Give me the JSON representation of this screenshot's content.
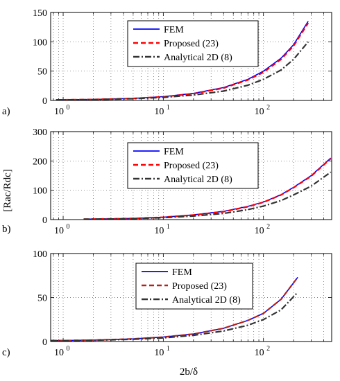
{
  "figure": {
    "xlabel": "2b/δ",
    "ylabel": "[Rac/Rdc]"
  },
  "colors": {
    "fem": "#0000ff",
    "proposed": "#ff0000",
    "proposed_c": "#b22222",
    "analytical": "#333333",
    "grid": "#555555"
  },
  "chart_data": [
    {
      "type": "line",
      "panel_label": "a)",
      "xscale": "log",
      "xlim": [
        0.75,
        480
      ],
      "ylim": [
        0,
        150
      ],
      "yticks": [
        0,
        50,
        100,
        150
      ],
      "xticks": [
        "10",
        "10",
        "10"
      ],
      "xtick_exponents": [
        "0",
        "1",
        "2"
      ],
      "legend_position": "top-center",
      "series": [
        {
          "name": "FEM",
          "style": "solid",
          "color": "#0000ff",
          "x": [
            0.85,
            1,
            2,
            5,
            10,
            20,
            40,
            70,
            100,
            150,
            200,
            280
          ],
          "y": [
            1,
            1.05,
            1.6,
            3.5,
            6.5,
            12,
            22,
            36,
            50,
            72,
            95,
            135
          ]
        },
        {
          "name": "Proposed (23)",
          "style": "dashed",
          "color": "#ff0000",
          "x": [
            0.85,
            1,
            2,
            5,
            10,
            20,
            40,
            70,
            100,
            150,
            200,
            280
          ],
          "y": [
            1,
            1.05,
            1.6,
            3.4,
            6.3,
            11.5,
            21,
            35,
            48,
            70,
            93,
            132
          ]
        },
        {
          "name": "Analytical 2D (8)",
          "style": "dashdot",
          "color": "#333333",
          "x": [
            0.85,
            1,
            2,
            5,
            10,
            20,
            40,
            70,
            100,
            150,
            200,
            280
          ],
          "y": [
            1,
            1.03,
            1.4,
            2.9,
            5.2,
            9.2,
            16,
            26,
            36,
            52,
            70,
            100
          ]
        }
      ]
    },
    {
      "type": "line",
      "panel_label": "b)",
      "xscale": "log",
      "xlim": [
        0.75,
        480
      ],
      "ylim": [
        0,
        300
      ],
      "yticks": [
        0,
        100,
        200,
        300
      ],
      "xticks": [
        "10",
        "10",
        "10"
      ],
      "xtick_exponents": [
        "0",
        "1",
        "2"
      ],
      "legend_position": "top-center",
      "series": [
        {
          "name": "FEM",
          "style": "solid",
          "color": "#0000ff",
          "x": [
            1.6,
            3,
            5,
            10,
            20,
            40,
            70,
            100,
            150,
            200,
            300,
            470
          ],
          "y": [
            1.5,
            2.5,
            4,
            8,
            16,
            28,
            45,
            60,
            85,
            110,
            150,
            210
          ]
        },
        {
          "name": "Proposed (23)",
          "style": "dashed",
          "color": "#ff0000",
          "x": [
            1.6,
            3,
            5,
            10,
            20,
            40,
            70,
            100,
            150,
            200,
            300,
            470
          ],
          "y": [
            1.5,
            2.5,
            4,
            8,
            15.5,
            27,
            44,
            59,
            84,
            109,
            148,
            208
          ]
        },
        {
          "name": "Analytical 2D (8)",
          "style": "dashdot",
          "color": "#333333",
          "x": [
            1.6,
            3,
            5,
            10,
            20,
            40,
            70,
            100,
            150,
            200,
            300,
            470
          ],
          "y": [
            1.3,
            2.1,
            3.3,
            6.3,
            12,
            21,
            34,
            46,
            65,
            84,
            114,
            162
          ]
        }
      ]
    },
    {
      "type": "line",
      "panel_label": "c)",
      "xscale": "log",
      "xlim": [
        0.75,
        480
      ],
      "ylim": [
        0,
        100
      ],
      "yticks": [
        0,
        50,
        100
      ],
      "xticks": [
        "10",
        "10",
        "10"
      ],
      "xtick_exponents": [
        "0",
        "1",
        "2"
      ],
      "legend_position": "top-center",
      "series": [
        {
          "name": "FEM",
          "style": "solid",
          "color": "#0000ff",
          "x": [
            0.75,
            1,
            2,
            5,
            10,
            20,
            40,
            70,
            100,
            150,
            220
          ],
          "y": [
            1,
            1.1,
            1.6,
            3,
            5,
            8.5,
            15,
            24,
            32,
            48,
            73
          ]
        },
        {
          "name": "Proposed (23)",
          "style": "dashed",
          "color": "#b22222",
          "x": [
            0.75,
            1,
            2,
            5,
            10,
            20,
            40,
            70,
            100,
            150,
            220
          ],
          "y": [
            1,
            1.1,
            1.6,
            3,
            5,
            8.5,
            15,
            24,
            32,
            48,
            73
          ]
        },
        {
          "name": "Analytical 2D (8)",
          "style": "dashdot",
          "color": "#333333",
          "x": [
            0.75,
            1,
            2,
            5,
            10,
            20,
            40,
            70,
            100,
            150,
            220
          ],
          "y": [
            1,
            1.05,
            1.4,
            2.5,
            4.1,
            7,
            12,
            18.5,
            25,
            36,
            56
          ]
        }
      ]
    }
  ]
}
